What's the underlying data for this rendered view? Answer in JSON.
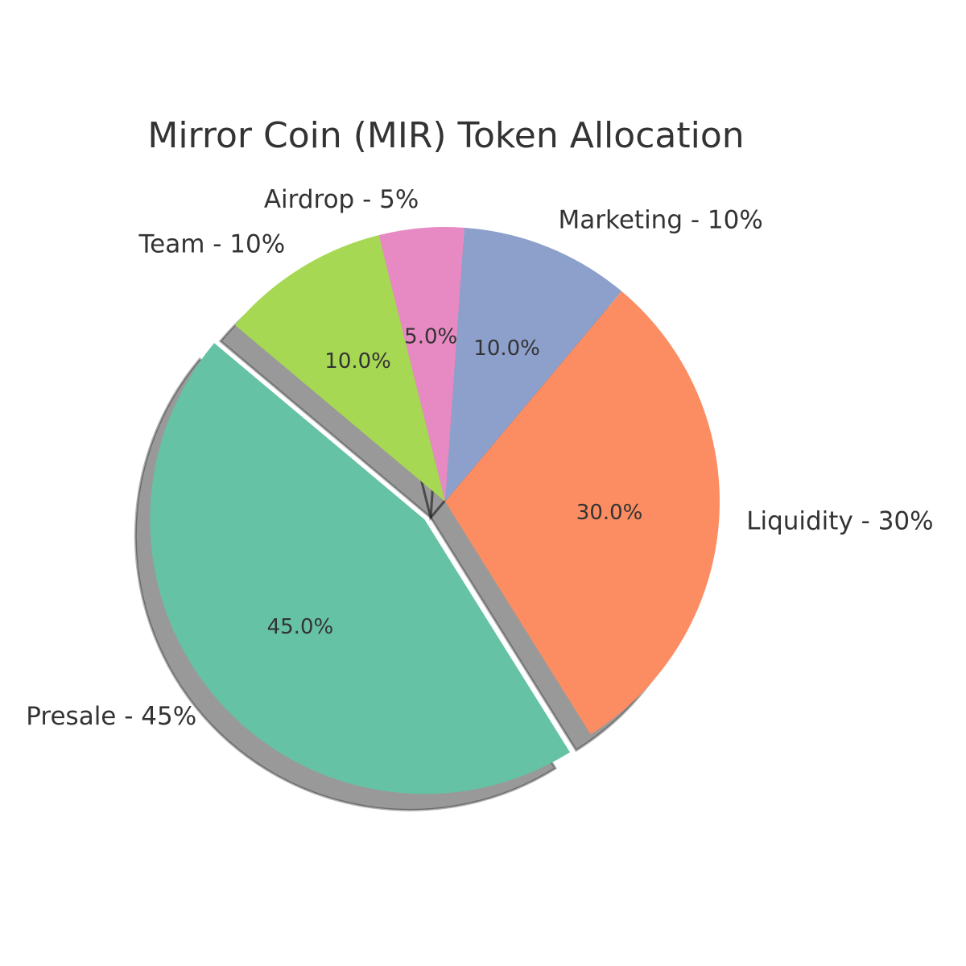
{
  "chart_data": {
    "type": "pie",
    "title": "Mirror Coin (MIR) Token Allocation",
    "categories": [
      "Presale",
      "Liquidity",
      "Marketing",
      "Airdrop",
      "Team"
    ],
    "values": [
      45,
      30,
      10,
      5,
      10
    ],
    "labels": [
      "Presale - 45%",
      "Liquidity - 30%",
      "Marketing - 10%",
      "Airdrop - 5%",
      "Team - 10%"
    ],
    "pct_labels": [
      "45.0%",
      "30.0%",
      "10.0%",
      "5.0%",
      "10.0%"
    ],
    "colors": [
      "#66c2a5",
      "#fc8d62",
      "#8da0cb",
      "#e78ac3",
      "#a6d854"
    ],
    "exploded": [
      "Presale"
    ],
    "shadow": true,
    "start_angle_deg": 140,
    "direction": "counterclockwise"
  }
}
